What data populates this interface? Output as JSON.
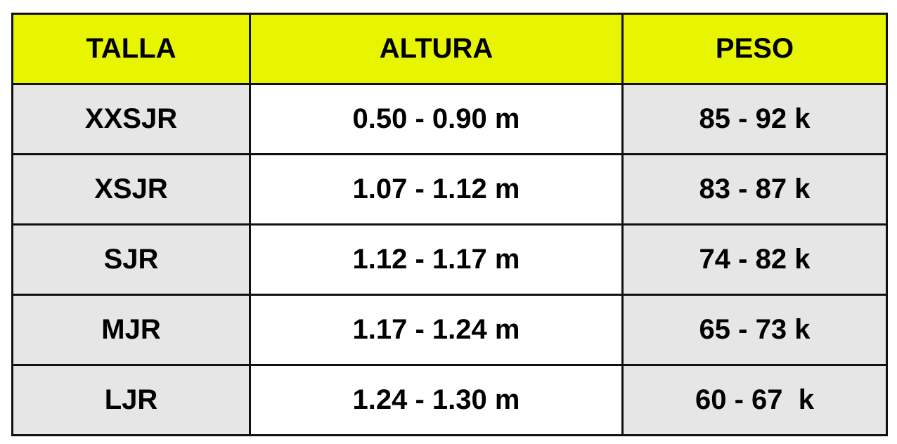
{
  "table": {
    "headers": [
      "TALLA",
      "ALTURA",
      "PESO"
    ],
    "rows": [
      {
        "talla": "XXSJR",
        "altura": "0.50 - 0.90 m",
        "peso": "85 - 92 k"
      },
      {
        "talla": "XSJR",
        "altura": "1.07 - 1.12 m",
        "peso": "83 - 87 k"
      },
      {
        "talla": "SJR",
        "altura": "1.12 - 1.17 m",
        "peso": "74 - 82 k"
      },
      {
        "talla": "MJR",
        "altura": "1.17 - 1.24 m",
        "peso": "65 - 73 k"
      },
      {
        "talla": "LJR",
        "altura": "1.24 - 1.30 m",
        "peso": "60 - 67  k"
      }
    ]
  },
  "colors": {
    "header_bg": "#e8f500",
    "shaded_cell_bg": "#e6e6e6",
    "plain_cell_bg": "#ffffff",
    "border": "#111111"
  }
}
